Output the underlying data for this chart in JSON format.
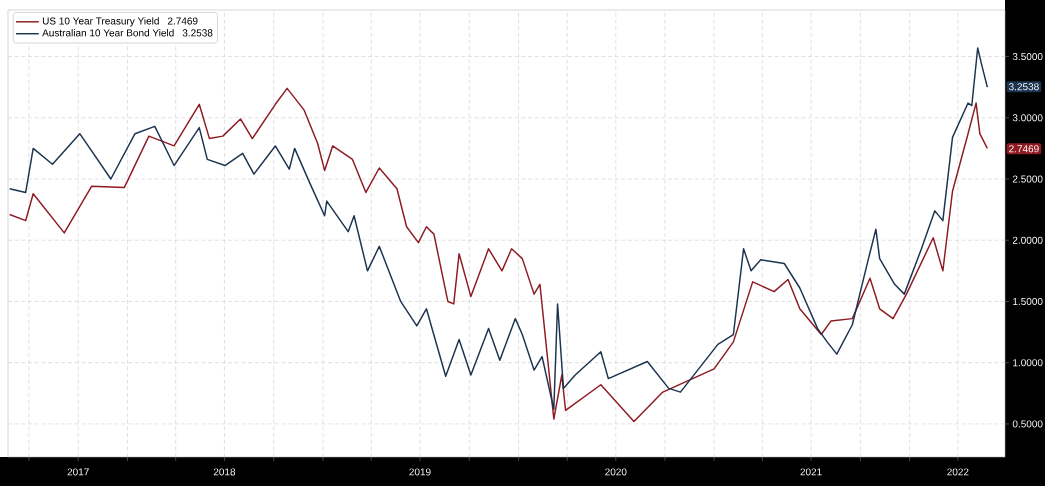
{
  "chart_data": {
    "type": "line",
    "xlim": [
      "2017-05-23",
      "2022-06-28"
    ],
    "ylim": [
      0.23,
      3.88
    ],
    "xticks": [
      {
        "value": "2017-07-01",
        "label": null
      },
      {
        "value": "2017-10-01",
        "label": "2017"
      },
      {
        "value": "2018-01-01",
        "label": null
      },
      {
        "value": "2018-04-01",
        "label": null
      },
      {
        "value": "2018-07-01",
        "label": "2018"
      },
      {
        "value": "2018-10-01",
        "label": null
      },
      {
        "value": "2019-01-01",
        "label": null
      },
      {
        "value": "2019-04-01",
        "label": null
      },
      {
        "value": "2019-07-01",
        "label": "2019"
      },
      {
        "value": "2019-10-01",
        "label": null
      },
      {
        "value": "2020-01-01",
        "label": null
      },
      {
        "value": "2020-04-01",
        "label": null
      },
      {
        "value": "2020-07-01",
        "label": "2020"
      },
      {
        "value": "2020-10-01",
        "label": null
      },
      {
        "value": "2021-01-01",
        "label": null
      },
      {
        "value": "2021-04-01",
        "label": null
      },
      {
        "value": "2021-07-01",
        "label": "2021"
      },
      {
        "value": "2021-10-01",
        "label": null
      },
      {
        "value": "2022-01-01",
        "label": null
      },
      {
        "value": "2022-04-01",
        "label": "2022"
      }
    ],
    "yticks": [
      {
        "value": 0.5,
        "label": "0.5000"
      },
      {
        "value": 1,
        "label": "1.0000"
      },
      {
        "value": 1.5,
        "label": "1.5000"
      },
      {
        "value": 2,
        "label": "2.0000"
      },
      {
        "value": 2.5,
        "label": "2.5000"
      },
      {
        "value": 3,
        "label": "3.0000"
      },
      {
        "value": 3.5,
        "label": "3.5000"
      }
    ],
    "grid": true,
    "legend": "top left",
    "marker": "none",
    "line_style": "solid",
    "series": [
      {
        "name": "US 10 Year Treasury Yield",
        "color": "#8e1b23",
        "x": [
          "2017-05-26",
          "2017-06-25",
          "2017-07-09",
          "2017-09-05",
          "2017-10-26",
          "2017-12-26",
          "2018-02-10",
          "2018-03-29",
          "2018-05-15",
          "2018-06-03",
          "2018-06-28",
          "2018-07-31",
          "2018-08-22",
          "2018-10-04",
          "2018-10-26",
          "2018-11-13",
          "2018-11-27",
          "2018-12-22",
          "2019-01-04",
          "2019-01-19",
          "2019-02-25",
          "2019-03-22",
          "2019-04-16",
          "2019-05-19",
          "2019-06-06",
          "2019-06-28",
          "2019-07-13",
          "2019-07-27",
          "2019-08-22",
          "2019-09-02",
          "2019-09-12",
          "2019-10-04",
          "2019-11-06",
          "2019-12-01",
          "2019-12-19",
          "2020-01-08",
          "2020-01-30",
          "2020-02-10",
          "2020-03-07",
          "2020-03-22",
          "2020-03-29",
          "2020-06-03",
          "2020-08-04",
          "2020-09-27",
          "2021-01-01",
          "2021-02-06",
          "2021-03-14",
          "2021-04-23",
          "2021-05-19",
          "2021-06-10",
          "2021-07-20",
          "2021-08-07",
          "2021-09-16",
          "2021-10-19",
          "2021-11-06",
          "2021-12-01",
          "2021-12-26",
          "2022-02-14",
          "2022-03-04",
          "2022-03-22",
          "2022-04-20",
          "2022-05-05",
          "2022-05-12",
          "2022-05-26"
        ],
        "values": [
          2.21,
          2.16,
          2.38,
          2.06,
          2.44,
          2.43,
          2.85,
          2.77,
          3.11,
          2.83,
          2.85,
          2.99,
          2.83,
          3.11,
          3.24,
          3.14,
          3.06,
          2.79,
          2.57,
          2.77,
          2.66,
          2.39,
          2.59,
          2.42,
          2.11,
          1.98,
          2.11,
          2.05,
          1.5,
          1.48,
          1.89,
          1.54,
          1.93,
          1.75,
          1.93,
          1.85,
          1.56,
          1.64,
          0.54,
          0.9,
          0.61,
          0.82,
          0.52,
          0.76,
          0.95,
          1.17,
          1.66,
          1.58,
          1.68,
          1.44,
          1.23,
          1.34,
          1.36,
          1.69,
          1.44,
          1.36,
          1.56,
          2.02,
          1.75,
          2.4,
          2.87,
          3.12,
          2.87,
          2.75
        ]
      },
      {
        "name": "Australian 10 Year Bond Yield",
        "color": "#1c3450",
        "x": [
          "2017-05-26",
          "2017-06-25",
          "2017-07-09",
          "2017-08-14",
          "2017-10-04",
          "2017-12-01",
          "2018-01-15",
          "2018-02-21",
          "2018-03-29",
          "2018-05-15",
          "2018-05-30",
          "2018-07-02",
          "2018-08-04",
          "2018-08-25",
          "2018-10-04",
          "2018-10-30",
          "2018-11-09",
          "2018-12-08",
          "2019-01-04",
          "2019-01-08",
          "2019-02-17",
          "2019-02-28",
          "2019-03-25",
          "2019-04-16",
          "2019-05-26",
          "2019-06-25",
          "2019-07-13",
          "2019-08-18",
          "2019-09-12",
          "2019-10-04",
          "2019-11-06",
          "2019-11-27",
          "2019-12-26",
          "2020-01-08",
          "2020-01-30",
          "2020-02-14",
          "2020-03-07",
          "2020-03-14",
          "2020-03-25",
          "2020-04-16",
          "2020-06-03",
          "2020-06-17",
          "2020-08-29",
          "2020-10-08",
          "2020-10-30",
          "2021-01-08",
          "2021-02-06",
          "2021-02-25",
          "2021-03-11",
          "2021-03-29",
          "2021-05-12",
          "2021-06-10",
          "2021-07-13",
          "2021-07-31",
          "2021-08-18",
          "2021-09-16",
          "2021-10-15",
          "2021-10-30",
          "2021-11-06",
          "2021-12-04",
          "2021-12-22",
          "2022-01-23",
          "2022-02-17",
          "2022-03-04",
          "2022-03-22",
          "2022-04-20",
          "2022-04-27",
          "2022-05-08",
          "2022-05-15",
          "2022-05-26"
        ],
        "values": [
          2.42,
          2.39,
          2.75,
          2.62,
          2.87,
          2.5,
          2.87,
          2.93,
          2.61,
          2.92,
          2.66,
          2.61,
          2.71,
          2.54,
          2.77,
          2.58,
          2.75,
          2.46,
          2.2,
          2.32,
          2.07,
          2.2,
          1.75,
          1.95,
          1.5,
          1.3,
          1.44,
          0.89,
          1.19,
          0.9,
          1.28,
          1.02,
          1.36,
          1.23,
          0.94,
          1.05,
          0.62,
          1.48,
          0.79,
          0.9,
          1.09,
          0.87,
          1.01,
          0.79,
          0.76,
          1.15,
          1.23,
          1.93,
          1.75,
          1.84,
          1.81,
          1.61,
          1.28,
          1.17,
          1.07,
          1.31,
          1.83,
          2.09,
          1.85,
          1.64,
          1.56,
          1.93,
          2.24,
          2.16,
          2.84,
          3.12,
          3.1,
          3.57,
          3.44,
          3.25
        ]
      }
    ],
    "annotations": [
      {
        "text": "2.7469",
        "x": "2022-05-26",
        "y": 2.7469
      },
      {
        "text": "3.2538",
        "x": "2022-05-26",
        "y": 3.2538
      }
    ]
  }
}
